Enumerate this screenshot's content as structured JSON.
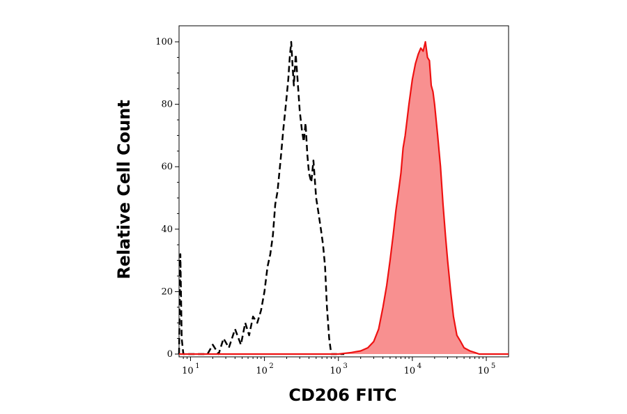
{
  "chart_data": {
    "type": "area",
    "xlabel": "CD206 FITC",
    "ylabel": "Relative Cell Count",
    "x_scale": "log",
    "xlim": [
      7,
      200000
    ],
    "ylim": [
      0,
      105
    ],
    "grid": false,
    "legend": "none",
    "xticks": [
      {
        "base": "10",
        "exp": "1",
        "value": 10
      },
      {
        "base": "10",
        "exp": "2",
        "value": 100
      },
      {
        "base": "10",
        "exp": "3",
        "value": 1000
      },
      {
        "base": "10",
        "exp": "4",
        "value": 10000
      },
      {
        "base": "10",
        "exp": "5",
        "value": 100000
      }
    ],
    "yticks": [
      {
        "label": "0",
        "value": 0
      },
      {
        "label": "20",
        "value": 20
      },
      {
        "label": "40",
        "value": 40
      },
      {
        "label": "60",
        "value": 60
      },
      {
        "label": "80",
        "value": 80
      },
      {
        "label": "100",
        "value": 100
      }
    ],
    "series": [
      {
        "style": "dashed",
        "color": "#000000",
        "fill": "none",
        "x": [
          7,
          7.3,
          7.6,
          8,
          10,
          14,
          17,
          20,
          24,
          28,
          33,
          40,
          48,
          55,
          62,
          70,
          80,
          90,
          100,
          110,
          120,
          130,
          140,
          150,
          165,
          180,
          195,
          210,
          220,
          230,
          240,
          250,
          265,
          280,
          300,
          320,
          340,
          360,
          380,
          400,
          430,
          460,
          500,
          540,
          580,
          620,
          660,
          700,
          750,
          800,
          900,
          1200
        ],
        "y": [
          0,
          32,
          5,
          0,
          0,
          0,
          0,
          3,
          0,
          5,
          2,
          8,
          3,
          10,
          6,
          12,
          10,
          14,
          20,
          28,
          32,
          38,
          48,
          52,
          62,
          72,
          80,
          88,
          95,
          100,
          92,
          86,
          96,
          88,
          78,
          72,
          68,
          74,
          64,
          58,
          55,
          62,
          50,
          45,
          40,
          35,
          28,
          15,
          5,
          0,
          0,
          0
        ]
      },
      {
        "style": "solid",
        "color": "#ee1111",
        "fill": "#f89090",
        "x": [
          7,
          1000,
          1500,
          2000,
          2500,
          3000,
          3500,
          4000,
          4500,
          5000,
          5500,
          6000,
          6500,
          7000,
          7500,
          8000,
          9000,
          10000,
          11000,
          12000,
          13000,
          14000,
          15000,
          16000,
          17000,
          18000,
          19000,
          20000,
          22000,
          24000,
          26000,
          28000,
          30000,
          33000,
          36000,
          40000,
          45000,
          50000,
          60000,
          70000,
          80000,
          100000,
          200000
        ],
        "y": [
          0,
          0,
          0.5,
          1,
          2,
          4,
          8,
          15,
          22,
          30,
          38,
          46,
          52,
          58,
          66,
          70,
          80,
          88,
          93,
          96,
          98,
          97,
          100,
          95,
          94,
          86,
          84,
          80,
          70,
          60,
          48,
          38,
          30,
          20,
          12,
          6,
          4,
          2,
          1,
          0.5,
          0,
          0,
          0
        ]
      }
    ]
  }
}
